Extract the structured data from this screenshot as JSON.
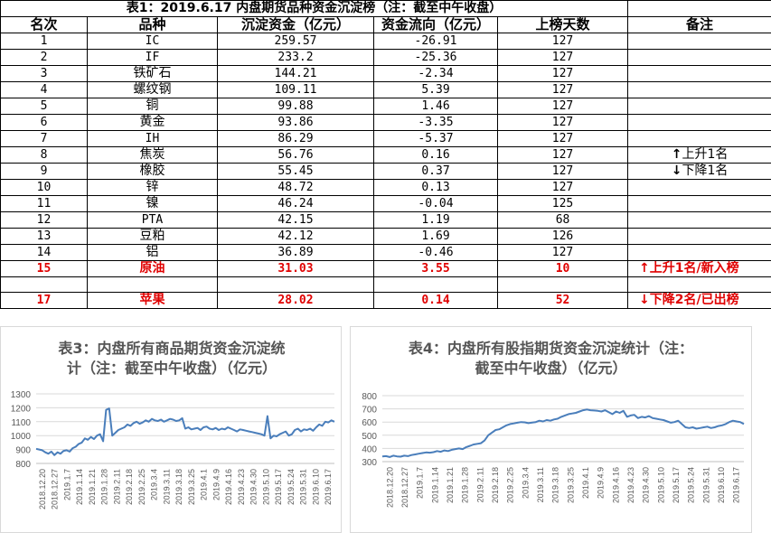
{
  "table": {
    "title": "表1：2019.6.17 内盘期货品种资金沉淀榜（注：截至中午收盘）",
    "headers": [
      "名次",
      "品种",
      "沉淀资金（亿元）",
      "资金流向（亿元）",
      "上榜天数",
      "备注"
    ],
    "rows": [
      {
        "rank": "1",
        "name": "IC",
        "amount": "259.57",
        "flow": "-26.91",
        "days": "127",
        "note": ""
      },
      {
        "rank": "2",
        "name": "IF",
        "amount": "233.2",
        "flow": "-25.36",
        "days": "127",
        "note": ""
      },
      {
        "rank": "3",
        "name": "铁矿石",
        "amount": "144.21",
        "flow": "-2.34",
        "days": "127",
        "note": ""
      },
      {
        "rank": "4",
        "name": "螺纹钢",
        "amount": "109.11",
        "flow": "5.39",
        "days": "127",
        "note": ""
      },
      {
        "rank": "5",
        "name": "铜",
        "amount": "99.88",
        "flow": "1.46",
        "days": "127",
        "note": ""
      },
      {
        "rank": "6",
        "name": "黄金",
        "amount": "93.86",
        "flow": "-3.35",
        "days": "127",
        "note": ""
      },
      {
        "rank": "7",
        "name": "IH",
        "amount": "86.29",
        "flow": "-5.37",
        "days": "127",
        "note": ""
      },
      {
        "rank": "8",
        "name": "焦炭",
        "amount": "56.76",
        "flow": "0.16",
        "days": "127",
        "note": "上升1名",
        "arrow": "↑"
      },
      {
        "rank": "9",
        "name": "橡胶",
        "amount": "55.45",
        "flow": "0.37",
        "days": "127",
        "note": "下降1名",
        "arrow": "↓"
      },
      {
        "rank": "10",
        "name": "锌",
        "amount": "48.72",
        "flow": "0.13",
        "days": "127",
        "note": ""
      },
      {
        "rank": "11",
        "name": "镍",
        "amount": "46.24",
        "flow": "-0.04",
        "days": "125",
        "note": ""
      },
      {
        "rank": "12",
        "name": "PTA",
        "amount": "42.15",
        "flow": "1.19",
        "days": "68",
        "note": ""
      },
      {
        "rank": "13",
        "name": "豆粕",
        "amount": "42.12",
        "flow": "1.69",
        "days": "126",
        "note": ""
      },
      {
        "rank": "14",
        "name": "铝",
        "amount": "36.89",
        "flow": "-0.46",
        "days": "127",
        "note": ""
      },
      {
        "rank": "15",
        "name": "原油",
        "amount": "31.03",
        "flow": "3.55",
        "days": "10",
        "note": "上升1名/新入榜",
        "arrow": "↑",
        "highlight": true
      },
      {
        "rank": "17",
        "name": "苹果",
        "amount": "28.02",
        "flow": "0.14",
        "days": "52",
        "note": "下降2名/已出榜",
        "arrow": "↓",
        "highlight": true
      }
    ]
  },
  "colors": {
    "line": "#4a7ebb",
    "grid": "#d9d9d9",
    "highlight": "#e00000",
    "chart_title": "#595959"
  },
  "chart_data": [
    {
      "type": "line",
      "title": "表3：内盘所有商品期货资金沉淀统计（注：截至中午收盘）（亿元）",
      "title_line1": "表3：内盘所有商品期货资金沉淀统",
      "title_line2": "计（注：截至中午收盘）（亿元）",
      "ylim": [
        800,
        1300
      ],
      "yticks": [
        800,
        900,
        1000,
        1100,
        1200,
        1300
      ],
      "x_labels": [
        "2018.12.20",
        "2018.12.27",
        "2019.1.7",
        "2019.1.14",
        "2019.1.21",
        "2019.1.28",
        "2019.2.11",
        "2019.2.18",
        "2019.2.25",
        "2019.3.4",
        "2019.3.11",
        "2019.3.18",
        "2019.3.25",
        "2019.4.1",
        "2019.4.9",
        "2019.4.16",
        "2019.4.23",
        "2019.4.30",
        "2019.5.10",
        "2019.5.17",
        "2019.5.24",
        "2019.5.31",
        "2019.6.10",
        "2019.6.17"
      ],
      "values": [
        905,
        900,
        895,
        880,
        870,
        885,
        860,
        880,
        870,
        890,
        895,
        885,
        910,
        920,
        940,
        950,
        980,
        970,
        990,
        975,
        1000,
        1010,
        960,
        1185,
        1195,
        1000,
        1020,
        1040,
        1050,
        1060,
        1080,
        1070,
        1090,
        1100,
        1085,
        1095,
        1110,
        1100,
        1120,
        1110,
        1105,
        1115,
        1100,
        1110,
        1120,
        1115,
        1105,
        1110,
        1125,
        1050,
        1060,
        1045,
        1050,
        1055,
        1040,
        1060,
        1065,
        1050,
        1045,
        1055,
        1040,
        1050,
        1045,
        1060,
        1050,
        1040,
        1030,
        1045,
        1040,
        1035,
        1030,
        1025,
        1020,
        1015,
        1010,
        1000,
        1140,
        980,
        1000,
        995,
        1010,
        1020,
        1030,
        1000,
        1010,
        1040,
        1050,
        1030,
        1045,
        1040,
        1050,
        1035,
        1060,
        1080,
        1070,
        1100,
        1095,
        1110,
        1100
      ]
    },
    {
      "type": "line",
      "title": "表4：内盘所有股指期货资金沉淀统计（注：截至中午收盘）（亿元）",
      "title_line1": "表4：内盘所有股指期货资金沉淀统计（注：",
      "title_line2": "截至中午收盘）（亿元）",
      "ylim": [
        300,
        800
      ],
      "yticks": [
        300,
        400,
        500,
        600,
        700,
        800
      ],
      "x_labels": [
        "2018.12.20",
        "2018.12.27",
        "2019.1.7",
        "2019.1.14",
        "2019.1.21",
        "2019.1.28",
        "2019.2.11",
        "2019.2.18",
        "2019.2.25",
        "2019.3.4",
        "2019.3.11",
        "2019.3.18",
        "2019.3.25",
        "2019.4.1",
        "2019.4.9",
        "2019.4.16",
        "2019.4.23",
        "2019.4.30",
        "2019.5.10",
        "2019.5.17",
        "2019.5.24",
        "2019.5.31",
        "2019.6.10",
        "2019.6.17"
      ],
      "values": [
        340,
        342,
        335,
        345,
        340,
        338,
        345,
        342,
        350,
        355,
        360,
        365,
        370,
        368,
        372,
        380,
        375,
        385,
        380,
        390,
        395,
        400,
        395,
        410,
        420,
        430,
        435,
        440,
        460,
        500,
        520,
        540,
        545,
        560,
        575,
        585,
        590,
        595,
        600,
        598,
        592,
        596,
        600,
        610,
        605,
        615,
        610,
        620,
        625,
        640,
        650,
        660,
        665,
        670,
        680,
        690,
        695,
        690,
        688,
        685,
        680,
        690,
        675,
        660,
        680,
        670,
        685,
        640,
        650,
        655,
        630,
        640,
        635,
        645,
        630,
        625,
        620,
        615,
        605,
        595,
        600,
        610,
        585,
        560,
        555,
        560,
        550,
        555,
        560,
        565,
        555,
        560,
        570,
        575,
        585,
        600,
        610,
        605,
        600,
        585
      ]
    }
  ]
}
